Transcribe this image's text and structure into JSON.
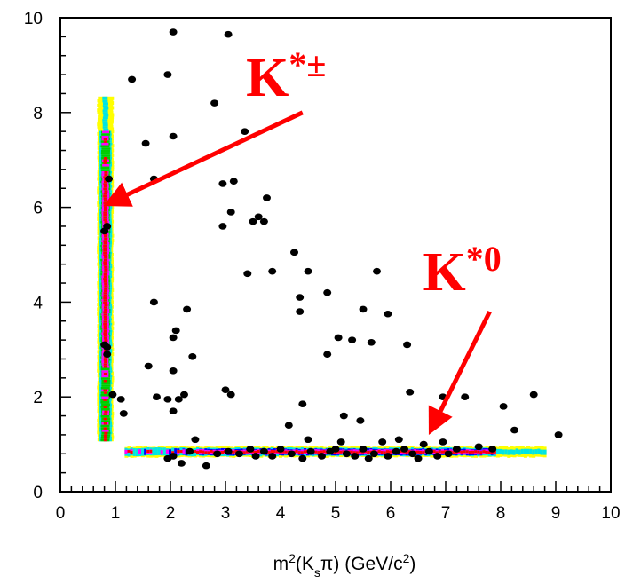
{
  "chart_data": {
    "type": "scatter",
    "title": "",
    "xlabel": {
      "prefix": "m",
      "sup1": "2",
      "mid": "(K",
      "sub": "s",
      "mid2": "π) (GeV/c",
      "sup2": "2",
      "suffix": ")"
    },
    "ylabel": "",
    "xlim": [
      0,
      10
    ],
    "ylim": [
      0,
      10
    ],
    "x_ticks": [
      "0",
      "1",
      "2",
      "3",
      "4",
      "5",
      "6",
      "7",
      "8",
      "9",
      "10"
    ],
    "y_ticks": [
      "0",
      "2",
      "4",
      "6",
      "8",
      "10"
    ],
    "grid": false,
    "annotations": [
      {
        "base": "K",
        "sup": "*±",
        "arrow_from": [
          4.4,
          8.0
        ],
        "arrow_to": [
          1.0,
          6.15
        ]
      },
      {
        "base": "K",
        "sup": "*0",
        "arrow_from": [
          7.8,
          3.8
        ],
        "arrow_to": [
          6.8,
          1.45
        ]
      }
    ],
    "density_bands": {
      "vertical": {
        "x_center": 0.82,
        "y_range": [
          1.1,
          8.3
        ],
        "colors": [
          "#ffff00",
          "#00e5e5",
          "#00cc00",
          "#ff00ff",
          "#ff0000"
        ]
      },
      "horizontal": {
        "y_center": 0.84,
        "x_range": [
          1.2,
          8.8
        ],
        "colors": [
          "#ffff00",
          "#00e5e5",
          "#0000ff",
          "#ff00ff",
          "#ff0000"
        ]
      }
    },
    "points": [
      [
        2.05,
        9.7
      ],
      [
        3.05,
        9.65
      ],
      [
        1.95,
        8.8
      ],
      [
        1.3,
        8.7
      ],
      [
        2.8,
        8.2
      ],
      [
        1.55,
        7.35
      ],
      [
        2.05,
        7.5
      ],
      [
        3.35,
        7.6
      ],
      [
        1.7,
        6.6
      ],
      [
        0.88,
        6.6
      ],
      [
        2.95,
        6.5
      ],
      [
        3.15,
        6.55
      ],
      [
        3.75,
        6.2
      ],
      [
        0.8,
        5.5
      ],
      [
        0.85,
        5.6
      ],
      [
        2.95,
        5.6
      ],
      [
        3.1,
        5.9
      ],
      [
        3.5,
        5.7
      ],
      [
        3.6,
        5.8
      ],
      [
        3.7,
        5.7
      ],
      [
        3.4,
        4.6
      ],
      [
        3.85,
        4.65
      ],
      [
        4.25,
        5.05
      ],
      [
        4.5,
        4.65
      ],
      [
        4.35,
        4.1
      ],
      [
        4.35,
        3.8
      ],
      [
        4.85,
        4.2
      ],
      [
        1.7,
        4.0
      ],
      [
        2.3,
        3.85
      ],
      [
        5.5,
        3.85
      ],
      [
        5.95,
        3.75
      ],
      [
        5.75,
        4.65
      ],
      [
        2.1,
        3.4
      ],
      [
        2.05,
        3.25
      ],
      [
        5.05,
        3.25
      ],
      [
        5.3,
        3.2
      ],
      [
        5.65,
        3.15
      ],
      [
        6.3,
        3.1
      ],
      [
        0.85,
        3.05
      ],
      [
        0.85,
        2.9
      ],
      [
        0.8,
        3.1
      ],
      [
        2.4,
        2.85
      ],
      [
        4.85,
        2.9
      ],
      [
        1.6,
        2.65
      ],
      [
        2.05,
        2.55
      ],
      [
        3.0,
        2.15
      ],
      [
        3.1,
        2.05
      ],
      [
        0.95,
        2.05
      ],
      [
        1.1,
        1.95
      ],
      [
        1.75,
        2.0
      ],
      [
        1.95,
        1.95
      ],
      [
        2.15,
        1.95
      ],
      [
        2.25,
        2.05
      ],
      [
        2.05,
        1.7
      ],
      [
        1.15,
        1.65
      ],
      [
        4.4,
        1.85
      ],
      [
        6.35,
        2.1
      ],
      [
        6.95,
        2.0
      ],
      [
        7.35,
        2.0
      ],
      [
        5.15,
        1.6
      ],
      [
        5.45,
        1.5
      ],
      [
        8.05,
        1.8
      ],
      [
        8.6,
        2.05
      ],
      [
        4.15,
        1.4
      ],
      [
        8.25,
        1.3
      ],
      [
        9.05,
        1.2
      ],
      [
        2.45,
        1.1
      ],
      [
        4.5,
        1.1
      ],
      [
        5.1,
        1.05
      ],
      [
        5.85,
        1.05
      ],
      [
        6.15,
        1.1
      ],
      [
        6.6,
        1.0
      ],
      [
        6.95,
        1.05
      ],
      [
        7.6,
        0.95
      ],
      [
        7.85,
        0.9
      ],
      [
        1.95,
        0.7
      ],
      [
        2.05,
        0.75
      ],
      [
        2.2,
        0.6
      ],
      [
        2.65,
        0.55
      ],
      [
        2.35,
        0.85
      ],
      [
        3.05,
        0.85
      ],
      [
        3.25,
        0.8
      ],
      [
        3.45,
        0.9
      ],
      [
        3.7,
        0.85
      ],
      [
        3.85,
        0.75
      ],
      [
        4.0,
        0.9
      ],
      [
        4.2,
        0.8
      ],
      [
        4.4,
        0.7
      ],
      [
        4.55,
        0.85
      ],
      [
        4.75,
        0.75
      ],
      [
        5.0,
        0.9
      ],
      [
        5.2,
        0.8
      ],
      [
        5.35,
        0.75
      ],
      [
        5.5,
        0.9
      ],
      [
        5.7,
        0.8
      ],
      [
        5.95,
        0.75
      ],
      [
        6.1,
        0.85
      ],
      [
        6.4,
        0.8
      ],
      [
        6.5,
        0.7
      ],
      [
        6.7,
        0.85
      ],
      [
        6.85,
        0.75
      ],
      [
        7.05,
        0.8
      ],
      [
        7.2,
        0.9
      ],
      [
        2.85,
        0.8
      ],
      [
        3.55,
        0.75
      ],
      [
        4.9,
        0.85
      ],
      [
        5.6,
        0.7
      ],
      [
        6.25,
        0.9
      ]
    ]
  }
}
